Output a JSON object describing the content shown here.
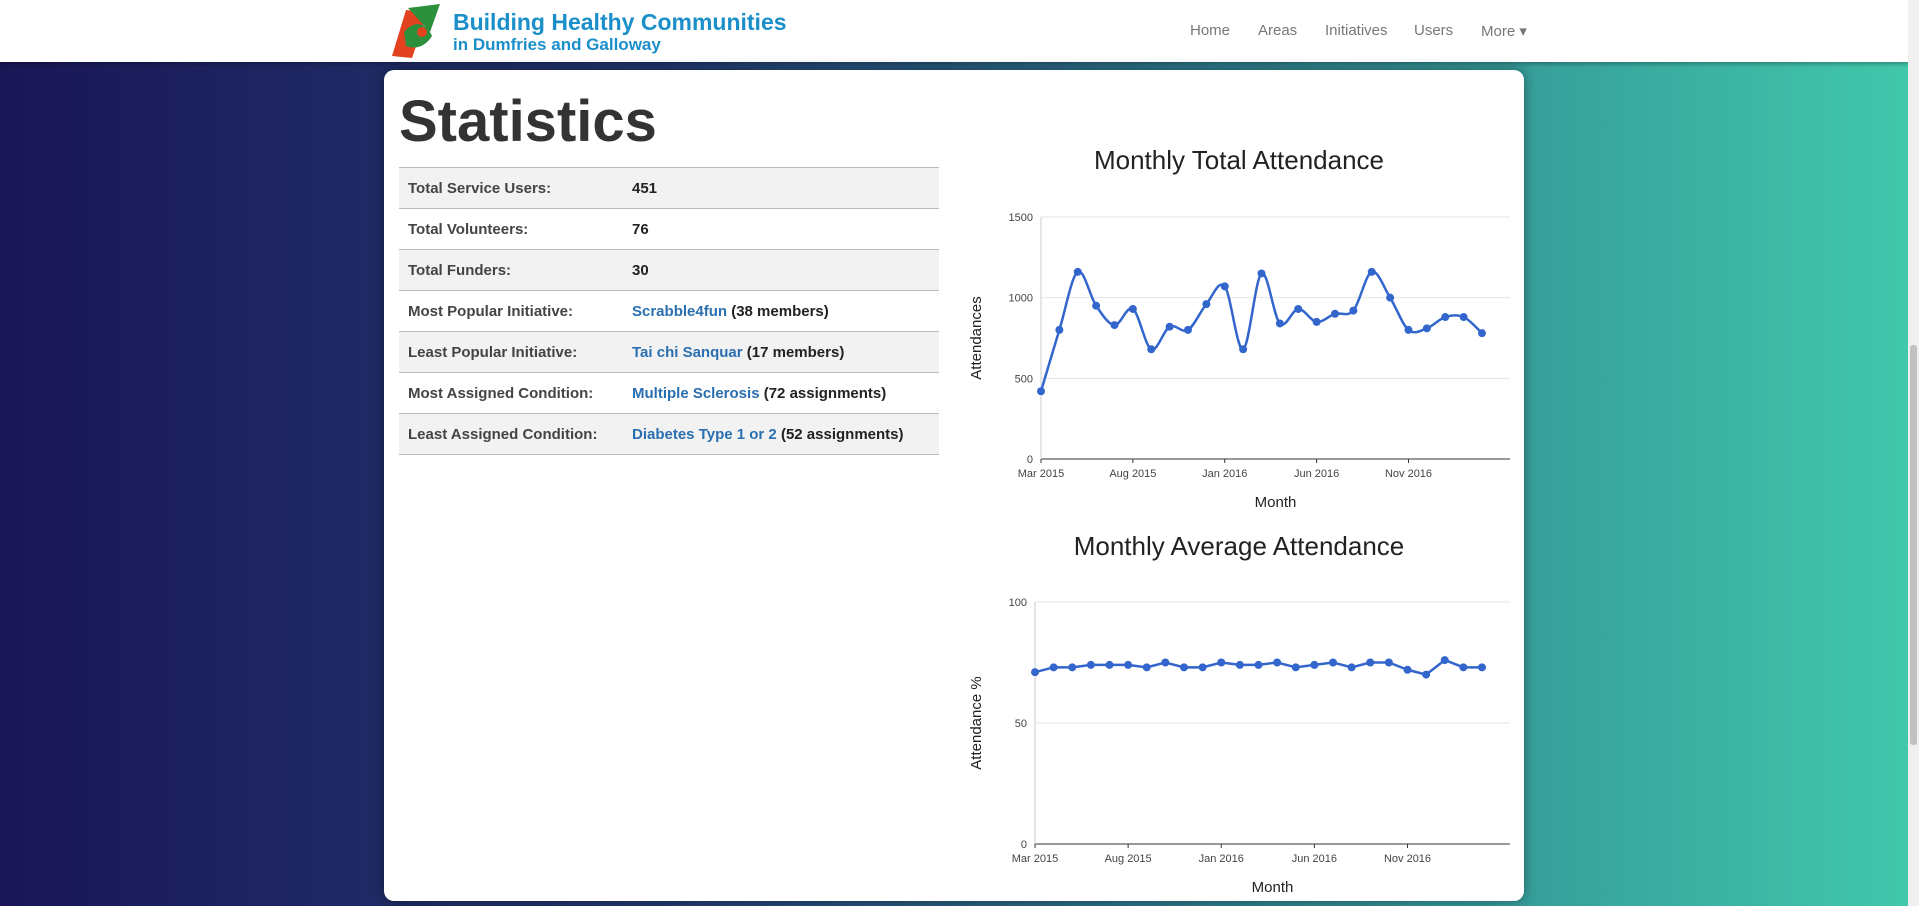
{
  "nav": {
    "brand": "Building Healthy Communities",
    "brand_sub": "in Dumfries and Galloway",
    "links": [
      "Home",
      "Areas",
      "Initiatives",
      "Users",
      "More"
    ]
  },
  "heading": "Statistics",
  "table": {
    "rows": [
      {
        "label": "Total Service Users:",
        "value": 451
      },
      {
        "label": "Total Volunteers:",
        "value": 76
      },
      {
        "label": "Total Funders:",
        "value": 30
      },
      {
        "label": "Most Popular Initiative:",
        "link": "Scrabble4fun",
        "note": "(38 members)"
      },
      {
        "label": "Least Popular Initiative:",
        "link": "Tai chi Sanquar",
        "note": "(17 members)"
      },
      {
        "label": "Most Assigned Condition:",
        "link": "Multiple Sclerosis",
        "note": "(72 assignments)"
      },
      {
        "label": "Least Assigned Condition:",
        "link": "Diabetes Type 1 or 2",
        "note": "(52 assignments)"
      }
    ]
  },
  "charts": [
    {
      "type": "line",
      "title": "Monthly Total Attendance",
      "x_label": "Month",
      "y_label": "Attendances",
      "color": "#3366cc",
      "curve": "smooth",
      "x": [
        "2015-03",
        "2015-04",
        "2015-05",
        "2015-06",
        "2015-07",
        "2015-08",
        "2015-09",
        "2015-10",
        "2015-11",
        "2015-12",
        "2016-01",
        "2016-02",
        "2016-03",
        "2016-04",
        "2016-05",
        "2016-06",
        "2016-07",
        "2016-08",
        "2016-09",
        "2016-10",
        "2016-11",
        "2016-12",
        "2017-01",
        "2017-02",
        "2017-03"
      ],
      "values": [
        420,
        800,
        1160,
        950,
        830,
        930,
        680,
        820,
        800,
        960,
        1070,
        680,
        1150,
        840,
        930,
        850,
        900,
        920,
        1160,
        1000,
        800,
        810,
        880,
        880,
        780
      ],
      "xticks": [
        {
          "value": "2015-03",
          "label": "Mar 2015"
        },
        {
          "value": "2015-08",
          "label": "Aug 2015"
        },
        {
          "value": "2016-01",
          "label": "Jan 2016"
        },
        {
          "value": "2016-06",
          "label": "Jun 2016"
        },
        {
          "value": "2016-11",
          "label": "Nov 2016"
        }
      ],
      "ylim": [
        0,
        1500
      ],
      "yticks": [
        0,
        500,
        1000,
        1500
      ],
      "grid": true
    },
    {
      "type": "line",
      "title": "Monthly Average Attendance",
      "x_label": "Month",
      "y_label": "Attendance %",
      "color": "#3366cc",
      "curve": "straight",
      "x": [
        "2015-03",
        "2015-04",
        "2015-05",
        "2015-06",
        "2015-07",
        "2015-08",
        "2015-09",
        "2015-10",
        "2015-11",
        "2015-12",
        "2016-01",
        "2016-02",
        "2016-03",
        "2016-04",
        "2016-05",
        "2016-06",
        "2016-07",
        "2016-08",
        "2016-09",
        "2016-10",
        "2016-11",
        "2016-12",
        "2017-01",
        "2017-02",
        "2017-03"
      ],
      "values": [
        71,
        73,
        73,
        74,
        74,
        74,
        73,
        75,
        73,
        73,
        75,
        74,
        74,
        75,
        73,
        74,
        75,
        73,
        75,
        75,
        72,
        70,
        76,
        73,
        73
      ],
      "xticks": [
        {
          "value": "2015-03",
          "label": "Mar 2015"
        },
        {
          "value": "2015-08",
          "label": "Aug 2015"
        },
        {
          "value": "2016-01",
          "label": "Jan 2016"
        },
        {
          "value": "2016-06",
          "label": "Jun 2016"
        },
        {
          "value": "2016-11",
          "label": "Nov 2016"
        }
      ],
      "ylim": [
        0,
        100
      ],
      "yticks": [
        0,
        50,
        100
      ],
      "grid": true
    }
  ]
}
